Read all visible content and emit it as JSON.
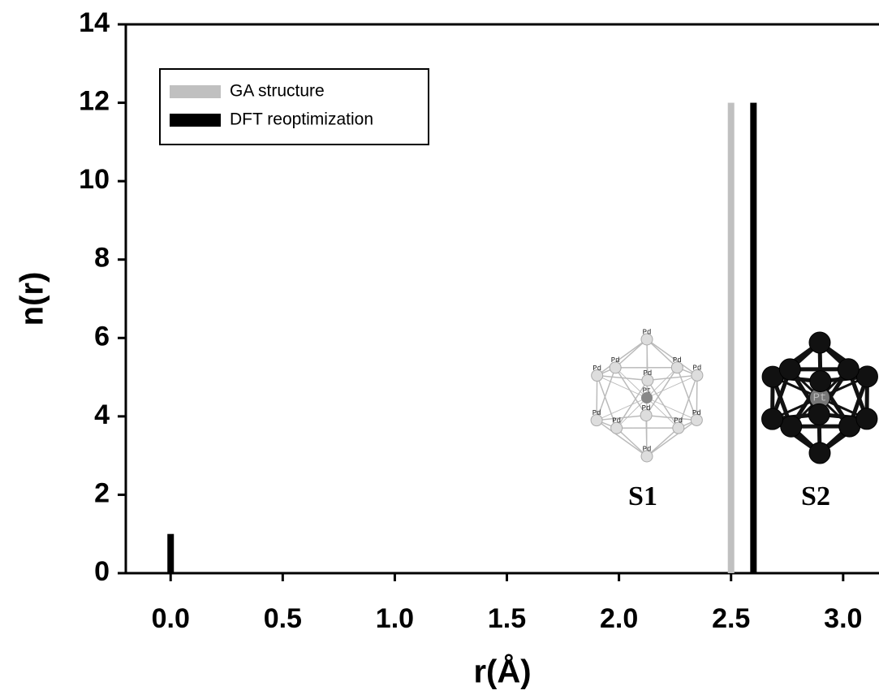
{
  "chart_data": {
    "type": "bar",
    "xlabel": "r(Å)",
    "ylabel": "n(r)",
    "series": [
      {
        "name": "GA structure",
        "color": "#c0c0c0",
        "x": [
          2.5
        ],
        "values": [
          12
        ]
      },
      {
        "name": "DFT reoptimization",
        "color": "#000000",
        "x": [
          0.0,
          2.6
        ],
        "values": [
          1,
          12
        ]
      }
    ],
    "xlim": [
      -0.2,
      3.16
    ],
    "ylim": [
      0,
      14
    ],
    "xticks": [
      {
        "value": 0.0,
        "label": "0.0"
      },
      0.5,
      {
        "value": 1.0,
        "label": "1.0"
      },
      1.5,
      {
        "value": 2.0,
        "label": "2.0"
      },
      2.5,
      {
        "value": 3.0,
        "label": "3.0"
      }
    ],
    "yticks": [
      0,
      2,
      4,
      6,
      8,
      10,
      12,
      14
    ],
    "legend": "upper left",
    "annotations": [
      "S1",
      "S2"
    ],
    "s1_atoms": [
      "Pd",
      "Pd",
      "Pd",
      "Pd",
      "Pd",
      "Pd",
      "Pd",
      "Pd",
      "Pd",
      "Pd",
      "Pd",
      "Pd",
      "Pt"
    ],
    "s2_atoms": [
      "Pt"
    ]
  }
}
